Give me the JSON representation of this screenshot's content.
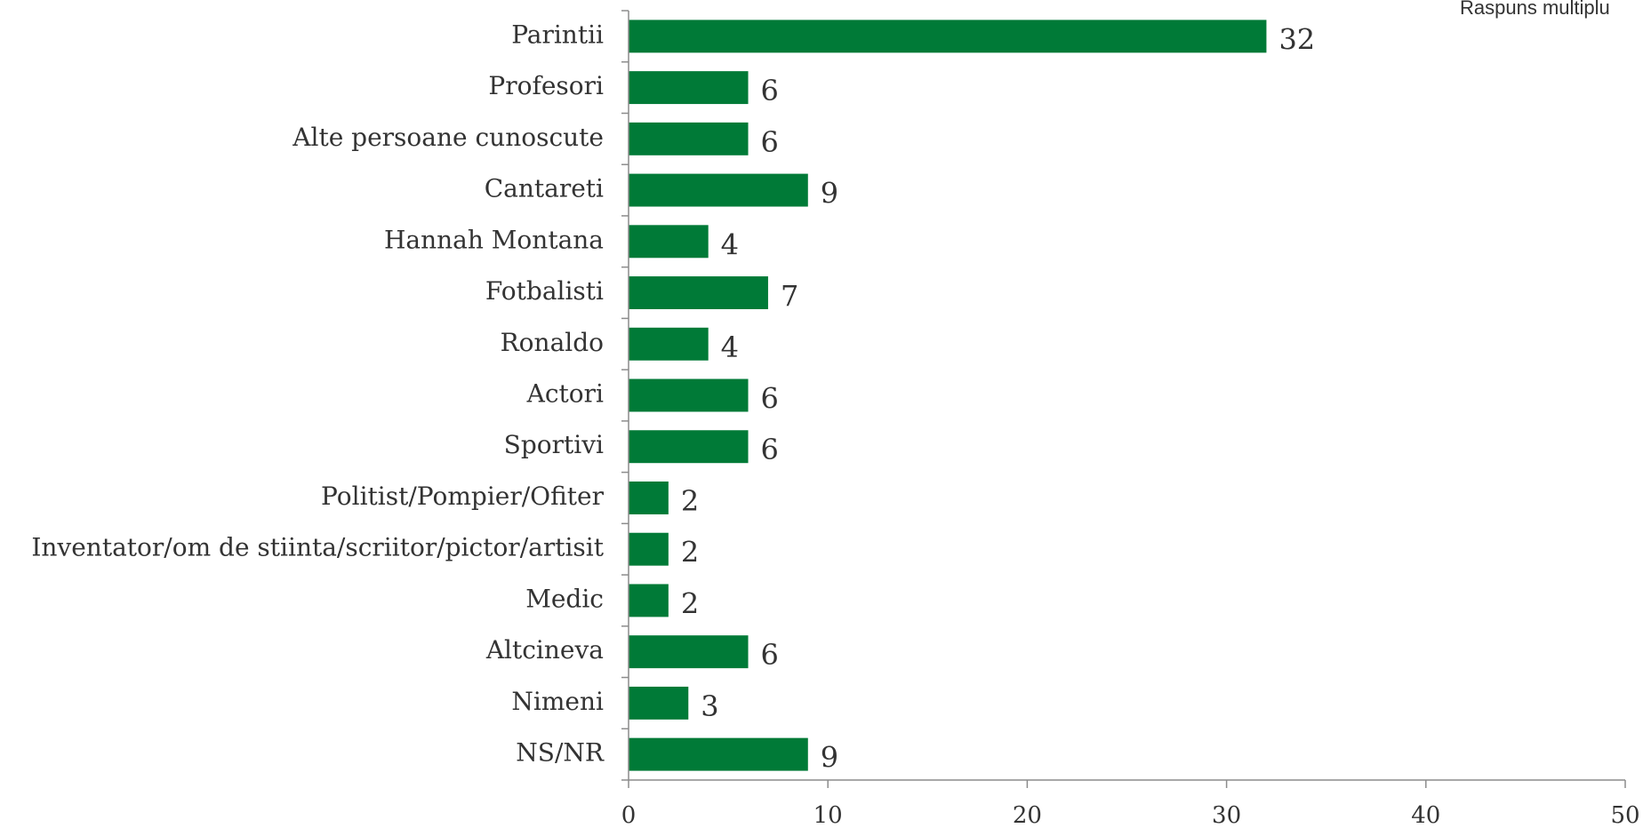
{
  "note": "Raspuns multiplu",
  "colors": {
    "bar": "#007a37",
    "axis": "#8c8c8c",
    "text": "#333333"
  },
  "chart_data": {
    "type": "bar",
    "orientation": "horizontal",
    "title": "",
    "xlabel": "",
    "ylabel": "",
    "categories": [
      "Parintii",
      "Profesori",
      "Alte persoane cunoscute",
      "Cantareti",
      "Hannah Montana",
      "Fotbalisti",
      "Ronaldo",
      "Actori",
      "Sportivi",
      "Politist/Pompier/Ofiter",
      "Inventator/om de stiinta/scriitor/pictor/artisit",
      "Medic",
      "Altcineva",
      "Nimeni",
      "NS/NR"
    ],
    "values": [
      32,
      6,
      6,
      9,
      4,
      7,
      4,
      6,
      6,
      2,
      2,
      2,
      6,
      3,
      9
    ],
    "value_labels": [
      "32",
      "6",
      "6",
      "9",
      "4",
      "7",
      "4",
      "6",
      "6",
      "2",
      "2",
      "2",
      "6",
      "3",
      "9"
    ],
    "xlim": [
      0,
      50
    ],
    "xticks": [
      0,
      10,
      20,
      30,
      40,
      50
    ],
    "xtick_labels": [
      "0",
      "10",
      "20",
      "30",
      "40",
      "50"
    ],
    "grid": false,
    "legend": "none"
  }
}
